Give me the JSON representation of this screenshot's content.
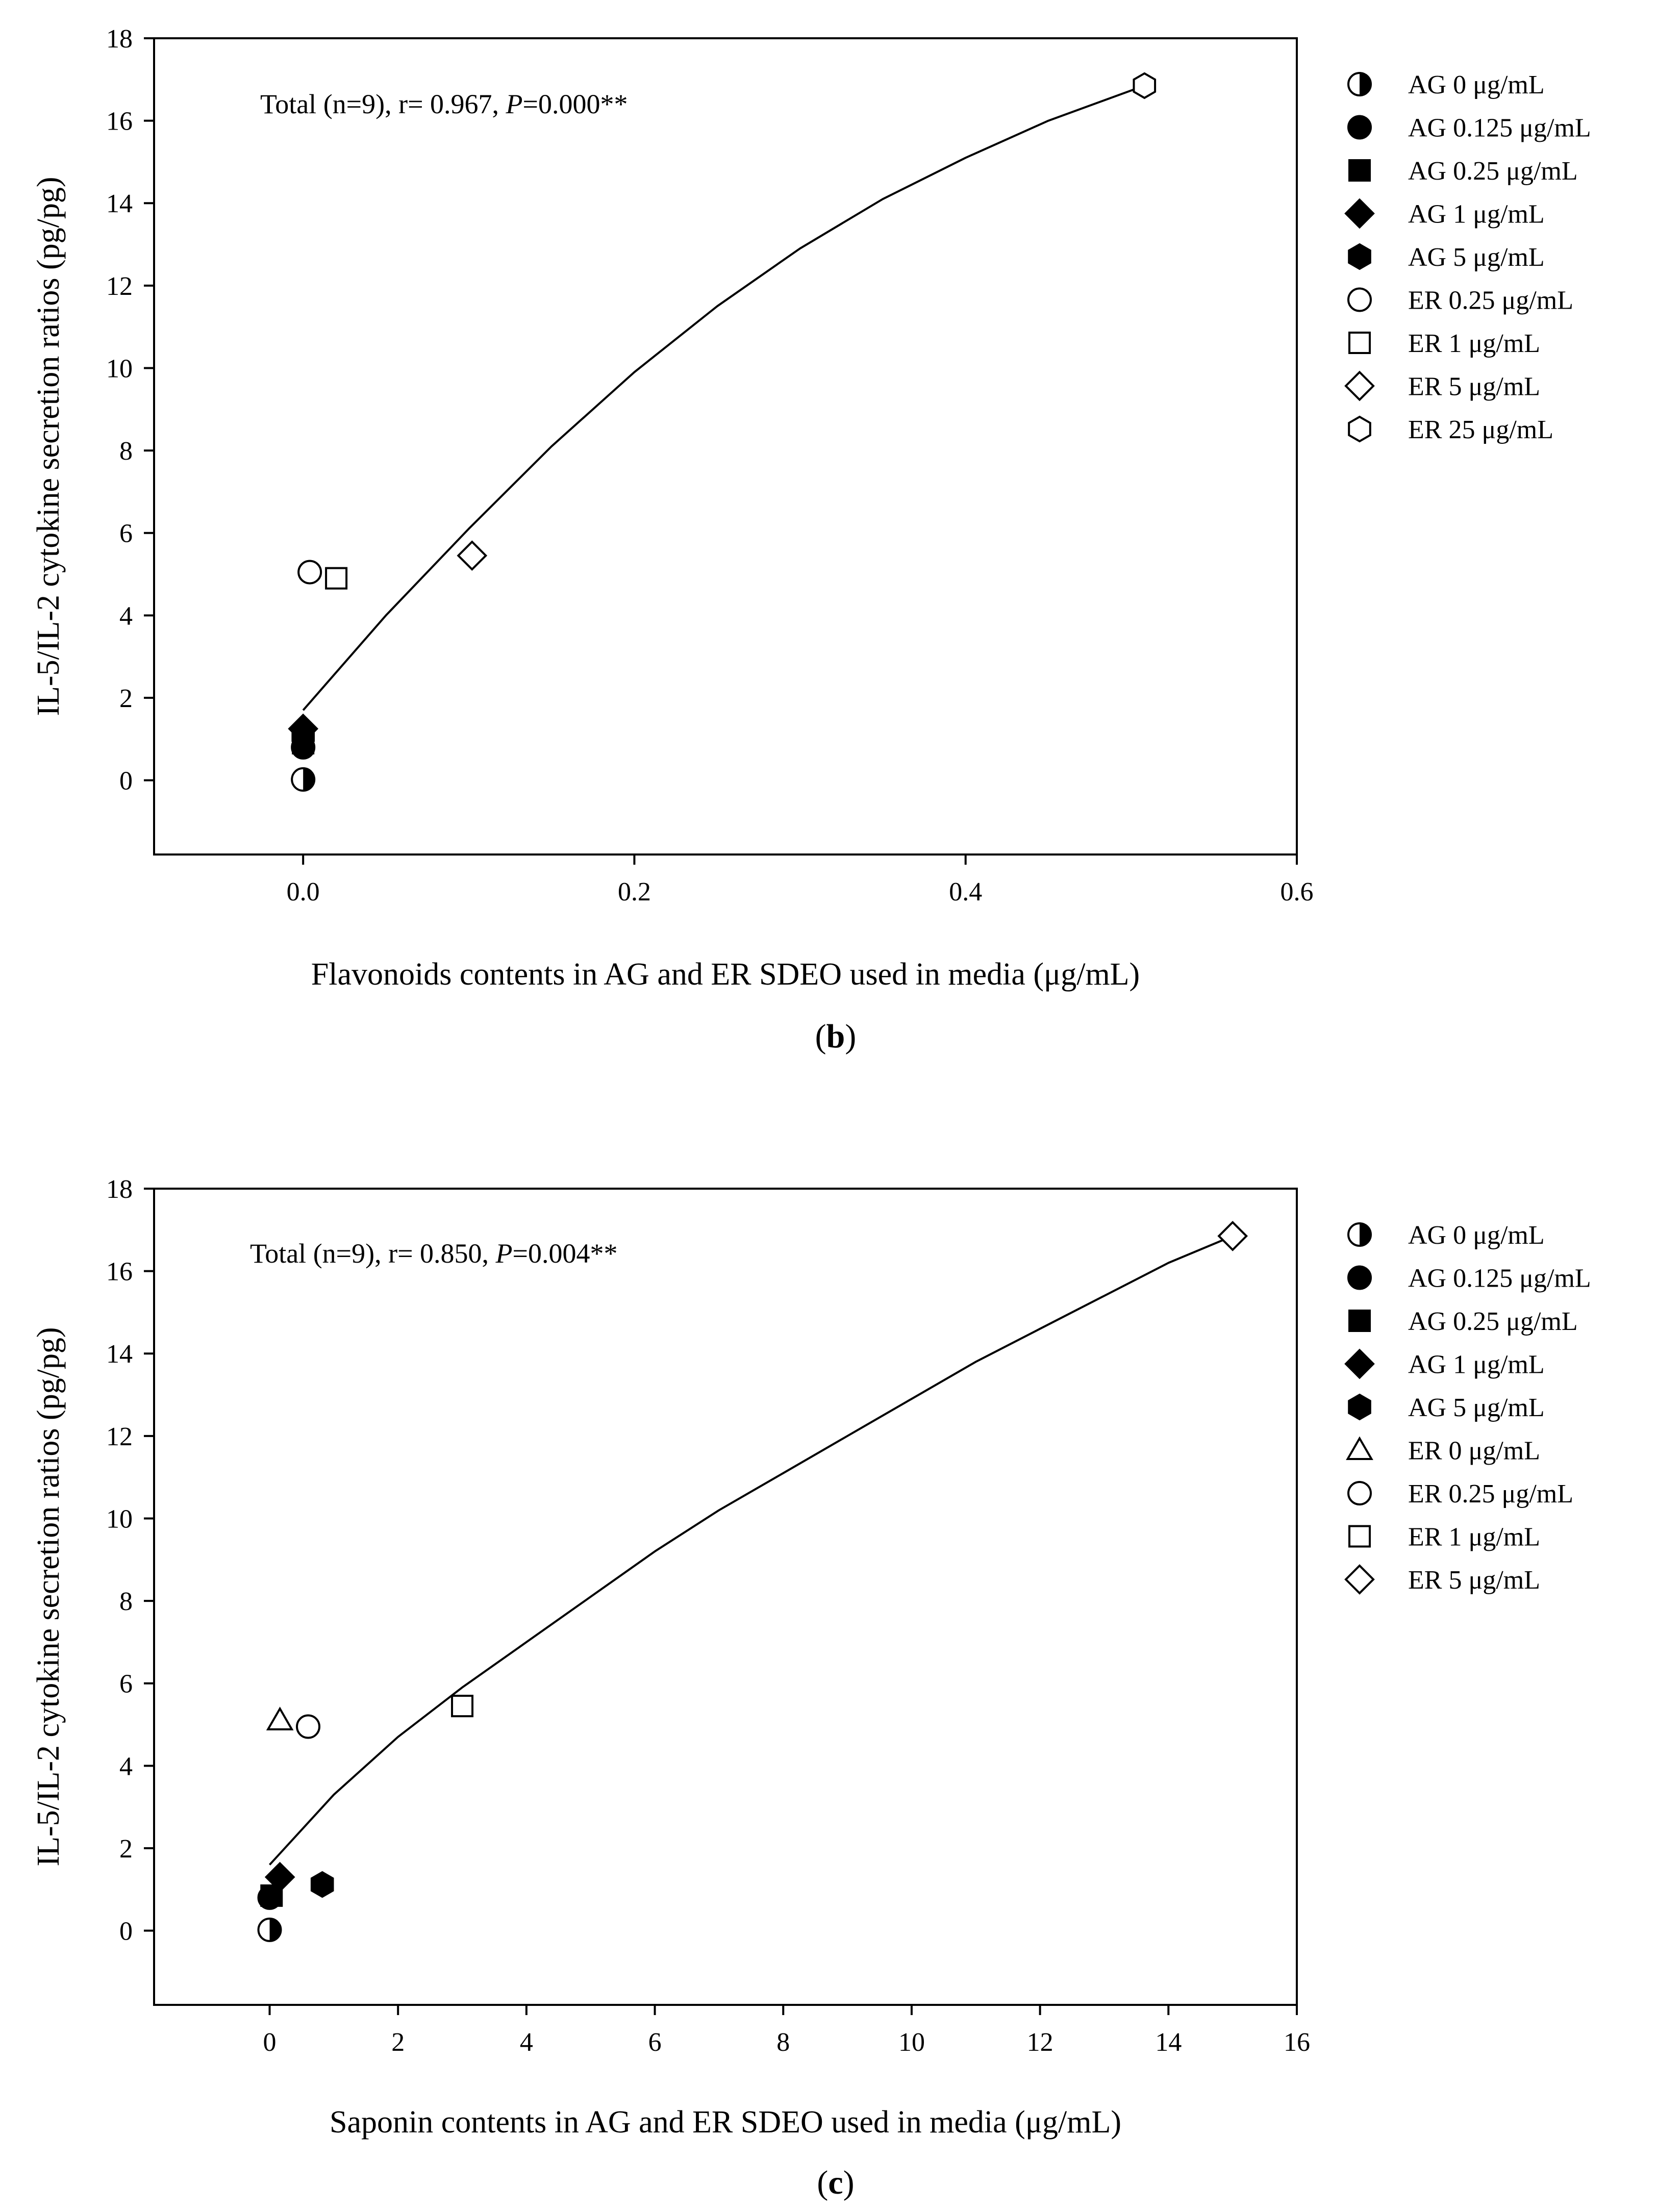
{
  "chart_data": [
    {
      "type": "scatter",
      "panel_label": "b",
      "title": "",
      "xlabel": "Flavonoids contents in AG and ER SDEO used in media (μg/mL)",
      "ylabel": "IL-5/IL-2 cytokine secretion ratios (pg/pg)",
      "xlim": [
        -0.09,
        0.6
      ],
      "ylim": [
        -1.8,
        18
      ],
      "xticks": [
        0.0,
        0.2,
        0.4,
        0.6
      ],
      "xtick_labels": [
        "0.0",
        "0.2",
        "0.4",
        "0.6"
      ],
      "yticks": [
        0,
        2,
        4,
        6,
        8,
        10,
        12,
        14,
        16,
        18
      ],
      "ytick_labels": [
        "0",
        "2",
        "4",
        "6",
        "8",
        "10",
        "12",
        "14",
        "16",
        "18"
      ],
      "grid": false,
      "annotation": {
        "prefix": "Total (n=9), r= 0.967, ",
        "p_symbol": "P",
        "suffix": "=0.000**"
      },
      "legend_position": "right-outside",
      "series": [
        {
          "name": "AG 0 μg/mL",
          "marker": "half-circle",
          "x": 0.0,
          "y": 0.02
        },
        {
          "name": "AG 0.125 μg/mL",
          "marker": "circle-filled",
          "x": 0.0,
          "y": 0.8
        },
        {
          "name": "AG 0.25 μg/mL",
          "marker": "square-filled",
          "x": 0.0,
          "y": 0.9
        },
        {
          "name": "AG 1 μg/mL",
          "marker": "diamond-filled",
          "x": 0.0,
          "y": 1.25
        },
        {
          "name": "AG 5 μg/mL",
          "marker": "hexagon-filled",
          "x": 0.0,
          "y": 1.1
        },
        {
          "name": "ER 0.25 μg/mL",
          "marker": "circle-open",
          "x": 0.004,
          "y": 5.05
        },
        {
          "name": "ER 1 μg/mL",
          "marker": "square-open",
          "x": 0.02,
          "y": 4.9
        },
        {
          "name": "ER 5 μg/mL",
          "marker": "diamond-open",
          "x": 0.102,
          "y": 5.45
        },
        {
          "name": "ER 25 μg/mL",
          "marker": "hexagon-open",
          "x": 0.508,
          "y": 16.85
        }
      ],
      "fit_curve": {
        "x": [
          0.0,
          0.05,
          0.1,
          0.15,
          0.2,
          0.25,
          0.3,
          0.35,
          0.4,
          0.45,
          0.508
        ],
        "y": [
          1.7,
          4.0,
          6.1,
          8.1,
          9.9,
          11.5,
          12.9,
          14.1,
          15.1,
          16.0,
          16.85
        ]
      }
    },
    {
      "type": "scatter",
      "panel_label": "c",
      "title": "",
      "xlabel": "Saponin contents in AG and ER SDEO used in media (μg/mL)",
      "ylabel": "IL-5/IL-2 cytokine secretion ratios (pg/pg)",
      "xlim": [
        -1.8,
        16
      ],
      "ylim": [
        -1.8,
        18
      ],
      "xticks": [
        0,
        2,
        4,
        6,
        8,
        10,
        12,
        14,
        16
      ],
      "xtick_labels": [
        "0",
        "2",
        "4",
        "6",
        "8",
        "10",
        "12",
        "14",
        "16"
      ],
      "yticks": [
        0,
        2,
        4,
        6,
        8,
        10,
        12,
        14,
        16,
        18
      ],
      "ytick_labels": [
        "0",
        "2",
        "4",
        "6",
        "8",
        "10",
        "12",
        "14",
        "16",
        "18"
      ],
      "grid": false,
      "annotation": {
        "prefix": "Total (n=9), r= 0.850, ",
        "p_symbol": "P",
        "suffix": "=0.004**"
      },
      "legend_position": "right-outside",
      "series": [
        {
          "name": "AG 0 μg/mL",
          "marker": "half-circle",
          "x": 0.0,
          "y": 0.02
        },
        {
          "name": "AG 0.125 μg/mL",
          "marker": "circle-filled",
          "x": 0.0,
          "y": 0.8
        },
        {
          "name": "AG 0.25 μg/mL",
          "marker": "square-filled",
          "x": 0.03,
          "y": 0.85
        },
        {
          "name": "AG 1 μg/mL",
          "marker": "diamond-filled",
          "x": 0.16,
          "y": 1.3
        },
        {
          "name": "AG 5 μg/mL",
          "marker": "hexagon-filled",
          "x": 0.82,
          "y": 1.12
        },
        {
          "name": "ER 0 μg/mL",
          "marker": "triangle-open",
          "x": 0.16,
          "y": 5.1
        },
        {
          "name": "ER 0.25 μg/mL",
          "marker": "circle-open",
          "x": 0.6,
          "y": 4.95
        },
        {
          "name": "ER 1 μg/mL",
          "marker": "square-open",
          "x": 3.0,
          "y": 5.45
        },
        {
          "name": "ER 5 μg/mL",
          "marker": "diamond-open",
          "x": 15.0,
          "y": 16.85
        }
      ],
      "fit_curve": {
        "x": [
          0,
          1,
          2,
          3,
          4,
          5,
          6,
          7,
          8,
          9,
          10,
          11,
          12,
          13,
          14,
          15
        ],
        "y": [
          1.6,
          3.3,
          4.7,
          5.9,
          7.0,
          8.1,
          9.2,
          10.2,
          11.1,
          12.0,
          12.9,
          13.8,
          14.6,
          15.4,
          16.2,
          16.85
        ]
      }
    }
  ]
}
